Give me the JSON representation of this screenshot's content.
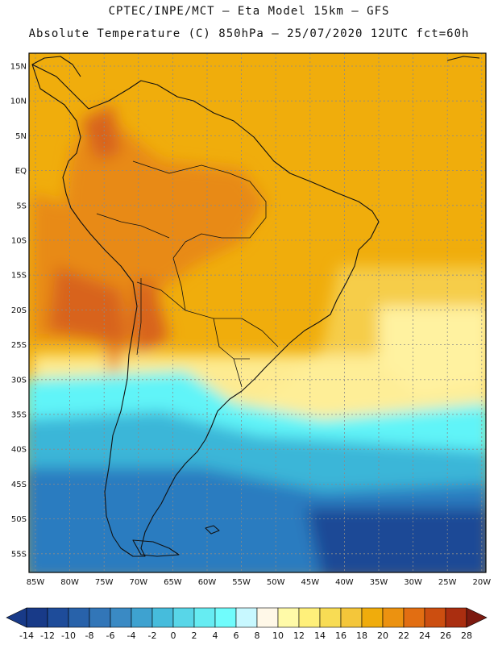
{
  "header": {
    "line1": "CPTEC/INPE/MCT – Eta Model 15km – GFS",
    "line2": "Absolute Temperature (C) 850hPa – 25/07/2020 12UTC fct=60h"
  },
  "map": {
    "region": "South America",
    "variable": "Absolute Temperature",
    "units": "C",
    "level": "850hPa",
    "lat_labels": [
      "15N",
      "10N",
      "5N",
      "EQ",
      "5S",
      "10S",
      "15S",
      "20S",
      "25S",
      "30S",
      "35S",
      "40S",
      "45S",
      "50S",
      "55S"
    ],
    "lon_labels": [
      "85W",
      "80W",
      "75W",
      "70W",
      "65W",
      "60W",
      "55W",
      "50W",
      "45W",
      "40W",
      "35W",
      "30W",
      "25W",
      "20W"
    ],
    "colors": {
      "warm_core": "#d8641a",
      "warm": "#e88a14",
      "mid": "#f0ad0c",
      "light": "#f6cd4a",
      "pale": "#fff2a0",
      "cool": "#60f4f8",
      "cold": "#3ab6d8",
      "colder": "#2a7cc0",
      "coldest": "#1e4a96"
    }
  },
  "colorbar": {
    "labels": [
      "-14",
      "-12",
      "-10",
      "-8",
      "-6",
      "-4",
      "-2",
      "0",
      "2",
      "4",
      "6",
      "8",
      "10",
      "12",
      "14",
      "16",
      "18",
      "20",
      "22",
      "24",
      "26",
      "28"
    ],
    "colors": [
      "#183a88",
      "#1e4c9a",
      "#2862aa",
      "#3276b8",
      "#3a8ac4",
      "#3ea2d0",
      "#46bcdc",
      "#58d6e8",
      "#66ecf2",
      "#70fcfc",
      "#c8f8ff",
      "#fff8e8",
      "#fffaa8",
      "#fff07a",
      "#f8dc54",
      "#f4c63a",
      "#f0ac0c",
      "#ec9210",
      "#e26e12",
      "#cc4e10",
      "#aa2e10",
      "#7c1a10"
    ]
  }
}
